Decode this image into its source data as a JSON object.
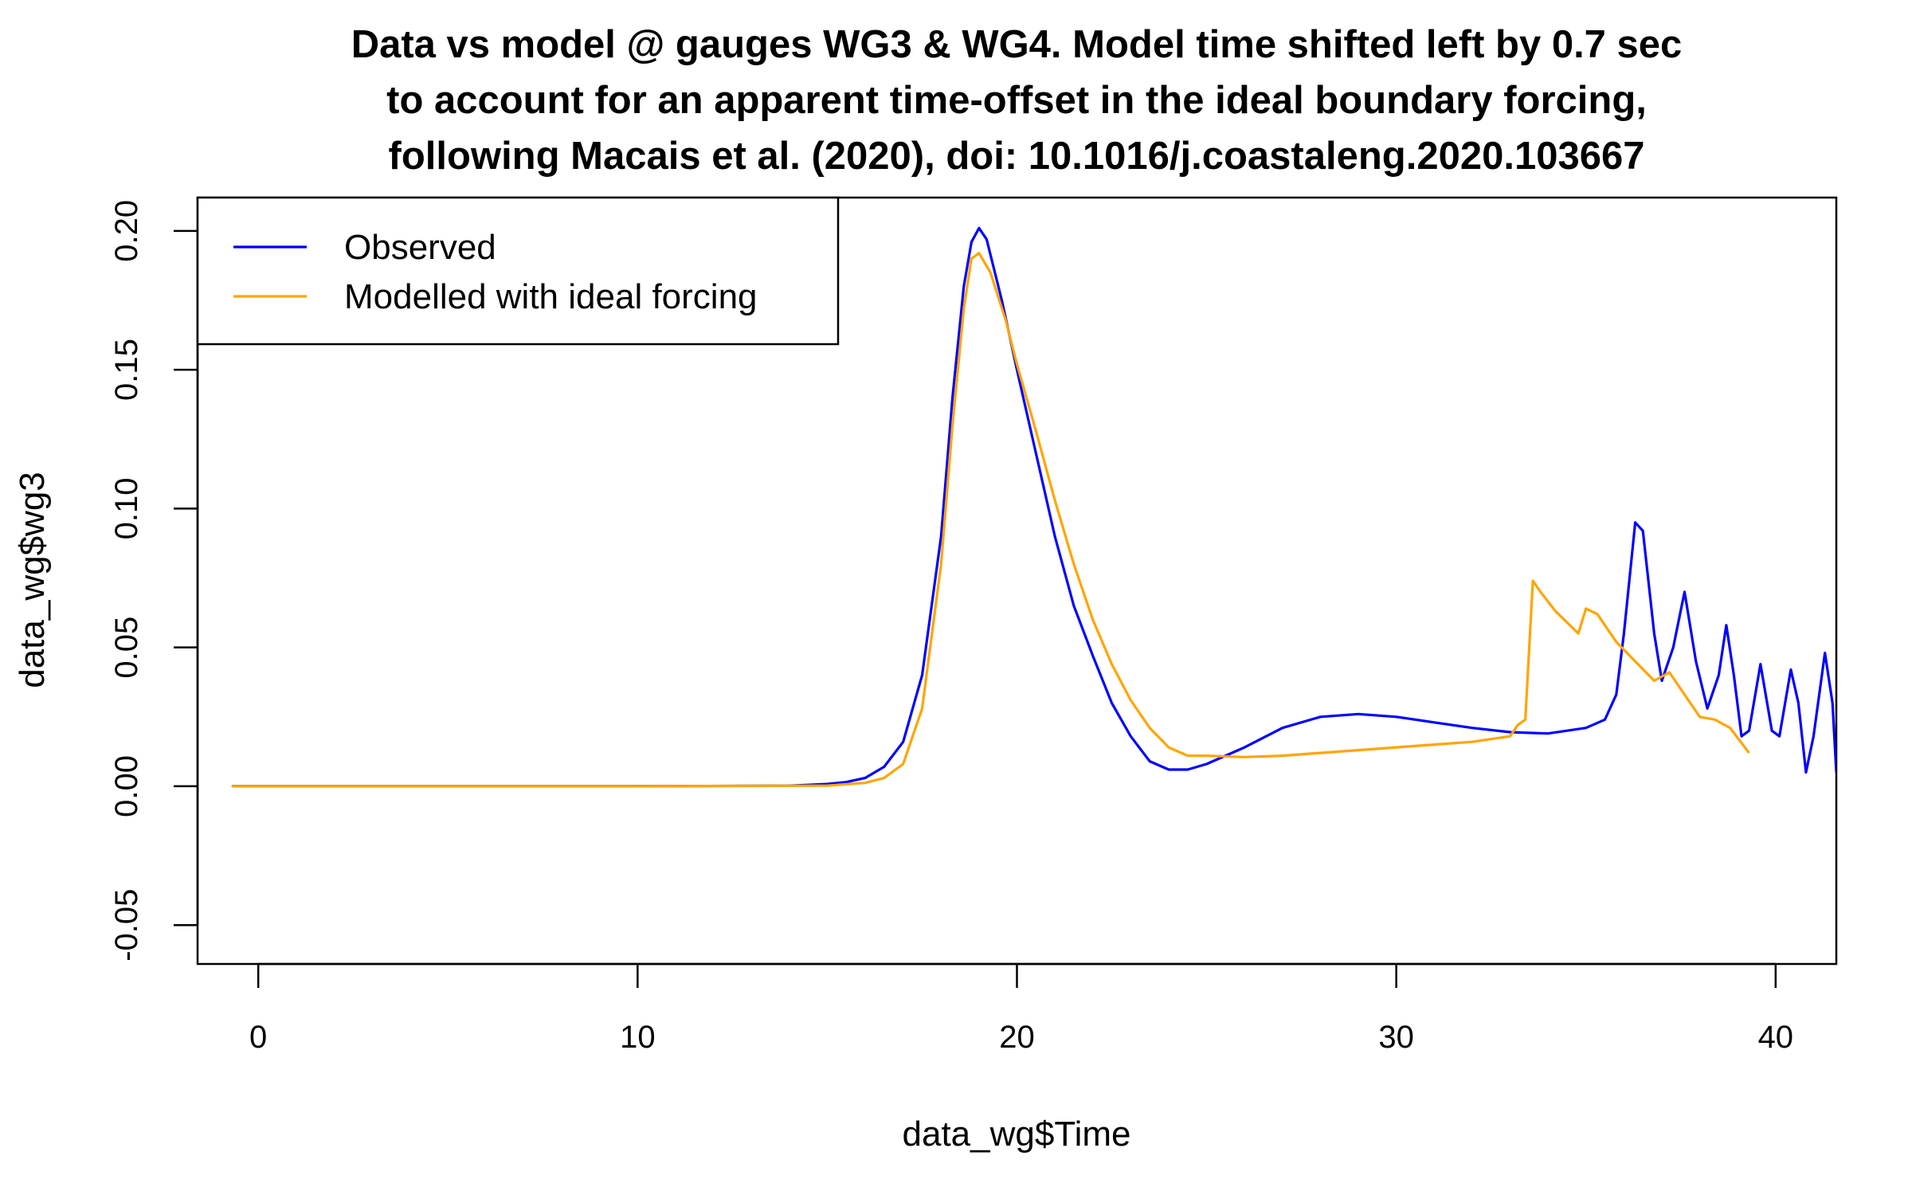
{
  "chart_data": {
    "type": "line",
    "title": [
      "Data vs model @ gauges WG3 & WG4. Model time shifted left by 0.7 sec",
      "to account for an apparent time-offset in the ideal boundary forcing,",
      "following Macais et al. (2020), doi: 10.1016/j.coastaleng.2020.103667"
    ],
    "xlabel": "data_wg$Time",
    "ylabel": "data_wg$wg3",
    "xlim": [
      -1.6,
      41.6
    ],
    "ylim": [
      -0.064,
      0.212
    ],
    "xticks": [
      0,
      10,
      20,
      30,
      40
    ],
    "xtick_labels": [
      "0",
      "10",
      "20",
      "30",
      "40"
    ],
    "yticks": [
      -0.05,
      0.0,
      0.05,
      0.1,
      0.15,
      0.2
    ],
    "ytick_labels": [
      "-0.05",
      "0.00",
      "0.05",
      "0.10",
      "0.15",
      "0.20"
    ],
    "legend": {
      "position": "top-left",
      "entries": [
        {
          "label": "Observed",
          "color": "#0000FF"
        },
        {
          "label": "Modelled with ideal forcing",
          "color": "#FFA500"
        }
      ]
    },
    "series": [
      {
        "name": "Observed",
        "color": "#0000FF",
        "points": [
          [
            -0.7,
            0.0
          ],
          [
            5,
            0.0
          ],
          [
            10,
            0.0
          ],
          [
            14,
            0.0002
          ],
          [
            15,
            0.0008
          ],
          [
            15.5,
            0.0015
          ],
          [
            16,
            0.003
          ],
          [
            16.5,
            0.007
          ],
          [
            17,
            0.016
          ],
          [
            17.5,
            0.04
          ],
          [
            18,
            0.09
          ],
          [
            18.3,
            0.14
          ],
          [
            18.6,
            0.18
          ],
          [
            18.8,
            0.196
          ],
          [
            19.0,
            0.201
          ],
          [
            19.2,
            0.197
          ],
          [
            19.6,
            0.175
          ],
          [
            20,
            0.15
          ],
          [
            20.5,
            0.12
          ],
          [
            21,
            0.09
          ],
          [
            21.5,
            0.065
          ],
          [
            22,
            0.047
          ],
          [
            22.5,
            0.03
          ],
          [
            23,
            0.018
          ],
          [
            23.5,
            0.009
          ],
          [
            24,
            0.006
          ],
          [
            24.5,
            0.006
          ],
          [
            25,
            0.008
          ],
          [
            26,
            0.014
          ],
          [
            27,
            0.021
          ],
          [
            28,
            0.025
          ],
          [
            29,
            0.026
          ],
          [
            30,
            0.025
          ],
          [
            31,
            0.023
          ],
          [
            32,
            0.021
          ],
          [
            33,
            0.0195
          ],
          [
            34,
            0.019
          ],
          [
            35,
            0.021
          ],
          [
            35.5,
            0.024
          ],
          [
            35.8,
            0.033
          ],
          [
            36.0,
            0.055
          ],
          [
            36.3,
            0.095
          ],
          [
            36.5,
            0.092
          ],
          [
            36.8,
            0.055
          ],
          [
            37.0,
            0.038
          ],
          [
            37.3,
            0.05
          ],
          [
            37.6,
            0.07
          ],
          [
            37.9,
            0.045
          ],
          [
            38.2,
            0.028
          ],
          [
            38.5,
            0.04
          ],
          [
            38.7,
            0.058
          ],
          [
            38.9,
            0.04
          ],
          [
            39.1,
            0.018
          ],
          [
            39.3,
            0.02
          ],
          [
            39.6,
            0.044
          ],
          [
            39.9,
            0.02
          ],
          [
            40.1,
            0.018
          ],
          [
            40.4,
            0.042
          ],
          [
            40.6,
            0.03
          ],
          [
            40.8,
            0.005
          ],
          [
            41.0,
            0.018
          ],
          [
            41.3,
            0.048
          ],
          [
            41.5,
            0.03
          ],
          [
            41.6,
            0.005
          ]
        ]
      },
      {
        "name": "Modelled with ideal forcing",
        "color": "#FFA500",
        "points": [
          [
            -0.7,
            0.0
          ],
          [
            5,
            0.0
          ],
          [
            10,
            0.0
          ],
          [
            15,
            0.0002
          ],
          [
            16,
            0.0012
          ],
          [
            16.5,
            0.003
          ],
          [
            17,
            0.008
          ],
          [
            17.5,
            0.028
          ],
          [
            18,
            0.08
          ],
          [
            18.3,
            0.13
          ],
          [
            18.6,
            0.172
          ],
          [
            18.8,
            0.19
          ],
          [
            19.0,
            0.192
          ],
          [
            19.3,
            0.185
          ],
          [
            19.7,
            0.168
          ],
          [
            20,
            0.152
          ],
          [
            20.5,
            0.128
          ],
          [
            21,
            0.103
          ],
          [
            21.5,
            0.08
          ],
          [
            22,
            0.06
          ],
          [
            22.5,
            0.044
          ],
          [
            23,
            0.031
          ],
          [
            23.5,
            0.021
          ],
          [
            24,
            0.014
          ],
          [
            24.5,
            0.011
          ],
          [
            25,
            0.011
          ],
          [
            26,
            0.0105
          ],
          [
            27,
            0.011
          ],
          [
            28,
            0.012
          ],
          [
            29,
            0.013
          ],
          [
            30,
            0.014
          ],
          [
            31,
            0.015
          ],
          [
            32,
            0.016
          ],
          [
            33,
            0.018
          ],
          [
            33.2,
            0.022
          ],
          [
            33.4,
            0.024
          ],
          [
            33.6,
            0.074
          ],
          [
            33.8,
            0.07
          ],
          [
            34.2,
            0.063
          ],
          [
            34.8,
            0.055
          ],
          [
            35.0,
            0.064
          ],
          [
            35.3,
            0.062
          ],
          [
            35.8,
            0.052
          ],
          [
            36.3,
            0.045
          ],
          [
            36.8,
            0.038
          ],
          [
            37.2,
            0.041
          ],
          [
            37.6,
            0.033
          ],
          [
            38.0,
            0.025
          ],
          [
            38.4,
            0.024
          ],
          [
            38.8,
            0.021
          ],
          [
            39.3,
            0.012
          ]
        ]
      }
    ]
  }
}
